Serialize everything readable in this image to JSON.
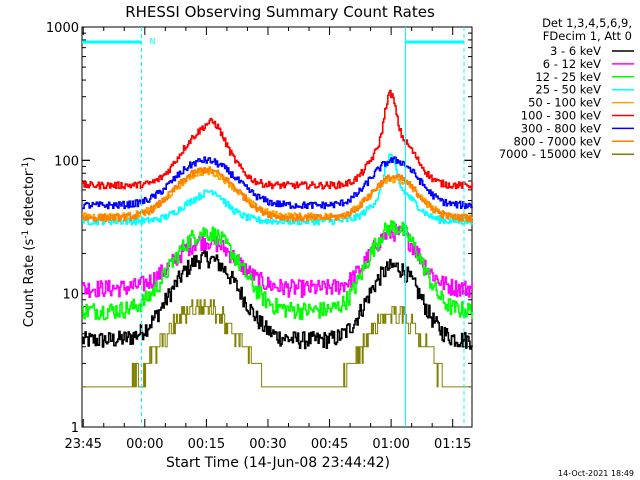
{
  "chart_data": {
    "type": "line",
    "title": "RHESSI Observing Summary Count Rates",
    "xlabel": "Start Time (14-Jun-08 23:44:42)",
    "ylabel_main": "Count Rate (s",
    "ylabel_sup1": "-1",
    "ylabel_mid": " detector",
    "ylabel_sup2": "-1",
    "ylabel_end": ")",
    "yscale": "log",
    "ylim": [
      1,
      1000
    ],
    "xlim_minutes": [
      0,
      95
    ],
    "x_ticks": [
      {
        "minute": 0.3,
        "label": "23:45"
      },
      {
        "minute": 15.3,
        "label": "00:00"
      },
      {
        "minute": 30.3,
        "label": "00:15"
      },
      {
        "minute": 45.3,
        "label": "00:30"
      },
      {
        "minute": 60.3,
        "label": "00:45"
      },
      {
        "minute": 75.3,
        "label": "01:00"
      },
      {
        "minute": 90.3,
        "label": "01:15"
      }
    ],
    "y_ticks": [
      {
        "value": 1,
        "label": "1"
      },
      {
        "value": 10,
        "label": "10"
      },
      {
        "value": 100,
        "label": "100"
      },
      {
        "value": 1000,
        "label": "1000"
      }
    ],
    "legend_header": [
      "Det 1,3,4,5,6,9,",
      "FDecim 1, Att 0"
    ],
    "night_marker_label": "N",
    "night_boundaries_minutes": [
      14.5,
      78.8
    ],
    "night_flag_color": "#00ffff",
    "series": [
      {
        "name": "3 - 6 keV",
        "color": "#000000",
        "base": 4.5,
        "p1": 18.5,
        "p2": 16
      },
      {
        "name": "6 - 12 keV",
        "color": "#ff00ff",
        "base": 11,
        "p1": 25,
        "p2": 29
      },
      {
        "name": "12 - 25 keV",
        "color": "#00ff00",
        "base": 7.5,
        "p1": 29,
        "p2": 32
      },
      {
        "name": "25 - 50 keV",
        "color": "#00ffff",
        "base": 35,
        "p1": 60,
        "p2": 110
      },
      {
        "name": "50 - 100 keV",
        "color": "#ffa500",
        "base": 38,
        "p1": 82,
        "p2": 72
      },
      {
        "name": "100 - 300 keV",
        "color": "#ff0000",
        "base": 65,
        "p1": 200,
        "p2": 320
      },
      {
        "name": "300 - 800 keV",
        "color": "#0000ff",
        "base": 46,
        "p1": 100,
        "p2": 100
      },
      {
        "name": "800 - 7000 keV",
        "color": "#ff7f00",
        "base": 37,
        "p1": 85,
        "p2": 75
      },
      {
        "name": "7000 - 15000 keV",
        "color": "#808000",
        "base": 1.8,
        "p1": 8,
        "p2": 7
      }
    ],
    "grid": false,
    "legend_position": "top-right"
  },
  "footer": {
    "timestamp": "14-Oct-2021 18:49"
  }
}
